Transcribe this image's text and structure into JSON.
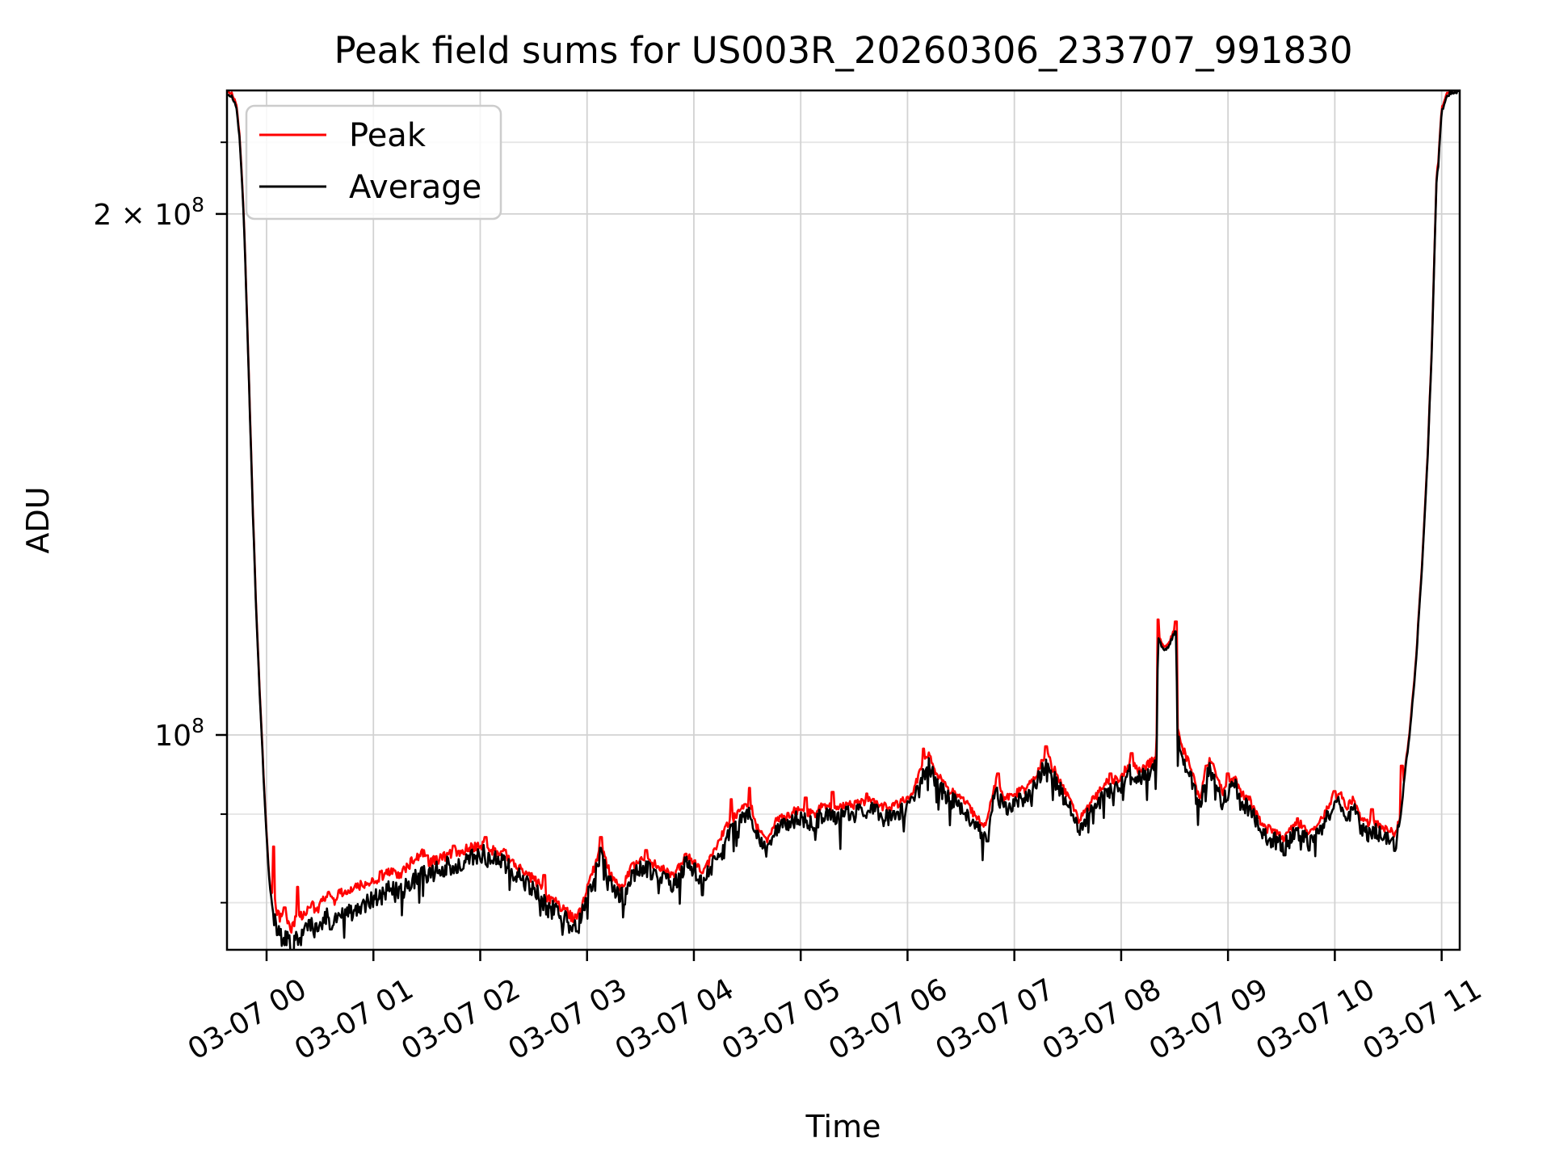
{
  "chart_data": {
    "type": "line",
    "title": "Peak field sums for US003R_20260306_233707_991830",
    "xlabel": "Time",
    "ylabel": "ADU",
    "yscale": "log",
    "ylim": [
      75000000.0,
      236000000.0
    ],
    "xlim_hours_after_0307_0000": [
      -0.38,
      11.17
    ],
    "grid": "both",
    "legend_position": "upper left",
    "legend": [
      {
        "label": "Peak",
        "color": "#ff0000"
      },
      {
        "label": "Average",
        "color": "#000000"
      }
    ],
    "x_ticks": [
      {
        "hour": 0,
        "label": "03-07 00"
      },
      {
        "hour": 1,
        "label": "03-07 01"
      },
      {
        "hour": 2,
        "label": "03-07 02"
      },
      {
        "hour": 3,
        "label": "03-07 03"
      },
      {
        "hour": 4,
        "label": "03-07 04"
      },
      {
        "hour": 5,
        "label": "03-07 05"
      },
      {
        "hour": 6,
        "label": "03-07 06"
      },
      {
        "hour": 7,
        "label": "03-07 07"
      },
      {
        "hour": 8,
        "label": "03-07 08"
      },
      {
        "hour": 9,
        "label": "03-07 09"
      },
      {
        "hour": 10,
        "label": "03-07 10"
      },
      {
        "hour": 11,
        "label": "03-07 11"
      }
    ],
    "y_major_ticks": [
      {
        "value_1e7": 10,
        "base": "10",
        "exp": "8"
      },
      {
        "value_1e7": 20,
        "base": "2 × 10",
        "exp": "8"
      }
    ],
    "y_minor_ticks_1e7": [
      8,
      9,
      22
    ],
    "colors": {
      "peak_line": "#ff0000",
      "average_line": "#000000",
      "major_grid": "#d2d2d2",
      "minor_grid": "#e6e6e6",
      "spine": "#000000"
    },
    "series_units": "value_1e7_ADU, time_hours_after_2026-03-07T00:00",
    "average_keypoints": [
      [
        -0.38,
        23.45
      ],
      [
        -0.32,
        23.35
      ],
      [
        -0.28,
        23.0
      ],
      [
        -0.25,
        22.0
      ],
      [
        -0.22,
        20.3
      ],
      [
        -0.19,
        18.0
      ],
      [
        -0.16,
        15.6
      ],
      [
        -0.13,
        13.5
      ],
      [
        -0.1,
        11.9
      ],
      [
        -0.06,
        10.4
      ],
      [
        -0.02,
        9.2
      ],
      [
        0.02,
        8.3
      ],
      [
        0.06,
        7.9
      ],
      [
        0.1,
        7.68
      ],
      [
        0.14,
        7.63
      ],
      [
        0.18,
        7.66
      ],
      [
        0.21,
        7.58
      ],
      [
        0.23,
        7.53
      ],
      [
        0.27,
        7.63
      ],
      [
        0.32,
        7.64
      ],
      [
        0.37,
        7.72
      ],
      [
        0.42,
        7.76
      ],
      [
        0.47,
        7.71
      ],
      [
        0.53,
        7.83
      ],
      [
        0.58,
        7.88
      ],
      [
        0.64,
        7.82
      ],
      [
        0.7,
        7.9
      ],
      [
        0.78,
        7.89
      ],
      [
        0.86,
        7.96
      ],
      [
        0.95,
        7.99
      ],
      [
        1.05,
        8.06
      ],
      [
        1.15,
        8.13
      ],
      [
        1.25,
        8.1
      ],
      [
        1.35,
        8.22
      ],
      [
        1.45,
        8.31
      ],
      [
        1.55,
        8.33
      ],
      [
        1.65,
        8.39
      ],
      [
        1.78,
        8.43
      ],
      [
        1.92,
        8.49
      ],
      [
        2.03,
        8.53
      ],
      [
        2.12,
        8.46
      ],
      [
        2.22,
        8.43
      ],
      [
        2.32,
        8.31
      ],
      [
        2.42,
        8.21
      ],
      [
        2.52,
        8.13
      ],
      [
        2.62,
        7.96
      ],
      [
        2.72,
        7.89
      ],
      [
        2.82,
        7.79
      ],
      [
        2.88,
        7.71
      ],
      [
        2.95,
        7.86
      ],
      [
        3.05,
        8.21
      ],
      [
        3.13,
        8.56
      ],
      [
        3.22,
        8.19
      ],
      [
        3.32,
        8.06
      ],
      [
        3.42,
        8.29
      ],
      [
        3.52,
        8.39
      ],
      [
        3.62,
        8.33
      ],
      [
        3.72,
        8.26
      ],
      [
        3.82,
        8.19
      ],
      [
        3.92,
        8.43
      ],
      [
        4.02,
        8.33
      ],
      [
        4.08,
        8.21
      ],
      [
        4.18,
        8.43
      ],
      [
        4.3,
        8.73
      ],
      [
        4.42,
        8.91
      ],
      [
        4.52,
        9.03
      ],
      [
        4.6,
        8.71
      ],
      [
        4.68,
        8.56
      ],
      [
        4.78,
        8.83
      ],
      [
        4.9,
        8.89
      ],
      [
        5.0,
        8.96
      ],
      [
        5.12,
        8.89
      ],
      [
        5.22,
        9.01
      ],
      [
        5.32,
        8.93
      ],
      [
        5.42,
        8.99
      ],
      [
        5.52,
        9.01
      ],
      [
        5.62,
        9.06
      ],
      [
        5.72,
        9.01
      ],
      [
        5.82,
        8.96
      ],
      [
        5.92,
        9.03
      ],
      [
        6.02,
        9.06
      ],
      [
        6.12,
        9.43
      ],
      [
        6.2,
        9.61
      ],
      [
        6.28,
        9.36
      ],
      [
        6.38,
        9.19
      ],
      [
        6.48,
        9.13
      ],
      [
        6.58,
        8.96
      ],
      [
        6.68,
        8.79
      ],
      [
        6.73,
        8.73
      ],
      [
        6.83,
        9.29
      ],
      [
        6.9,
        9.06
      ],
      [
        7.0,
        9.13
      ],
      [
        7.1,
        9.19
      ],
      [
        7.2,
        9.36
      ],
      [
        7.3,
        9.63
      ],
      [
        7.4,
        9.36
      ],
      [
        7.5,
        9.11
      ],
      [
        7.6,
        8.83
      ],
      [
        7.68,
        8.96
      ],
      [
        7.78,
        9.13
      ],
      [
        7.88,
        9.29
      ],
      [
        7.98,
        9.31
      ],
      [
        8.08,
        9.51
      ],
      [
        8.17,
        9.43
      ],
      [
        8.25,
        9.49
      ],
      [
        8.33,
        9.59
      ],
      [
        8.345,
        11.36
      ],
      [
        8.38,
        11.26
      ],
      [
        8.42,
        11.19
      ],
      [
        8.46,
        11.31
      ],
      [
        8.5,
        11.46
      ],
      [
        8.515,
        11.51
      ],
      [
        8.527,
        9.93
      ],
      [
        8.56,
        9.76
      ],
      [
        8.62,
        9.56
      ],
      [
        8.68,
        9.31
      ],
      [
        8.73,
        9.06
      ],
      [
        8.78,
        9.36
      ],
      [
        8.83,
        9.56
      ],
      [
        8.88,
        9.41
      ],
      [
        8.95,
        9.13
      ],
      [
        9.0,
        9.26
      ],
      [
        9.06,
        9.36
      ],
      [
        9.12,
        9.13
      ],
      [
        9.2,
        9.06
      ],
      [
        9.28,
        8.86
      ],
      [
        9.35,
        8.73
      ],
      [
        9.45,
        8.69
      ],
      [
        9.52,
        8.61
      ],
      [
        9.6,
        8.73
      ],
      [
        9.68,
        8.79
      ],
      [
        9.75,
        8.66
      ],
      [
        9.82,
        8.73
      ],
      [
        9.9,
        8.89
      ],
      [
        9.98,
        9.09
      ],
      [
        10.05,
        9.13
      ],
      [
        10.12,
        8.99
      ],
      [
        10.18,
        9.06
      ],
      [
        10.25,
        8.83
      ],
      [
        10.32,
        8.76
      ],
      [
        10.4,
        8.79
      ],
      [
        10.47,
        8.73
      ],
      [
        10.52,
        8.69
      ],
      [
        10.57,
        8.63
      ],
      [
        10.62,
        9.0
      ],
      [
        10.66,
        9.56
      ],
      [
        10.7,
        10.0
      ],
      [
        10.76,
        11.0
      ],
      [
        10.82,
        12.6
      ],
      [
        10.87,
        14.5
      ],
      [
        10.91,
        16.8
      ],
      [
        10.945,
        20.2
      ],
      [
        10.955,
        21.3
      ],
      [
        10.965,
        21.1
      ],
      [
        10.98,
        22.0
      ],
      [
        11.0,
        22.9
      ],
      [
        11.04,
        23.3
      ],
      [
        11.08,
        23.5
      ],
      [
        11.17,
        23.55
      ]
    ],
    "peak_spikes": [
      [
        0.065,
        8.62
      ],
      [
        0.17,
        7.95
      ],
      [
        0.29,
        8.17
      ],
      [
        0.5,
        7.98
      ],
      [
        0.845,
        8.12
      ],
      [
        1.2,
        8.35
      ],
      [
        1.5,
        8.52
      ],
      [
        1.75,
        8.63
      ],
      [
        2.05,
        8.73
      ],
      [
        2.6,
        8.3
      ],
      [
        3.13,
        8.73
      ],
      [
        3.55,
        8.58
      ],
      [
        4.35,
        9.18
      ],
      [
        4.52,
        9.32
      ],
      [
        5.05,
        9.2
      ],
      [
        5.3,
        9.27
      ],
      [
        5.62,
        9.25
      ],
      [
        6.15,
        9.82
      ],
      [
        6.85,
        9.5
      ],
      [
        7.3,
        9.85
      ],
      [
        7.9,
        9.5
      ],
      [
        8.1,
        9.76
      ],
      [
        8.345,
        11.66
      ],
      [
        8.51,
        11.63
      ],
      [
        8.8,
        9.6
      ],
      [
        9.0,
        9.5
      ],
      [
        9.65,
        8.95
      ],
      [
        10.0,
        9.28
      ],
      [
        10.35,
        9.06
      ],
      [
        10.63,
        9.6
      ]
    ],
    "average_dips": [
      [
        0.23,
        7.5
      ],
      [
        0.6,
        7.72
      ],
      [
        2.9,
        7.7
      ],
      [
        3.35,
        7.98
      ],
      [
        4.08,
        8.08
      ],
      [
        6.75,
        8.68
      ],
      [
        9.53,
        8.52
      ],
      [
        10.56,
        8.57
      ]
    ],
    "noise": {
      "seed": 1337,
      "amp_normal": 0.0105,
      "amp_early": 0.012,
      "amp_quiet": 0.0022,
      "dip_chance": 0.05
    }
  }
}
